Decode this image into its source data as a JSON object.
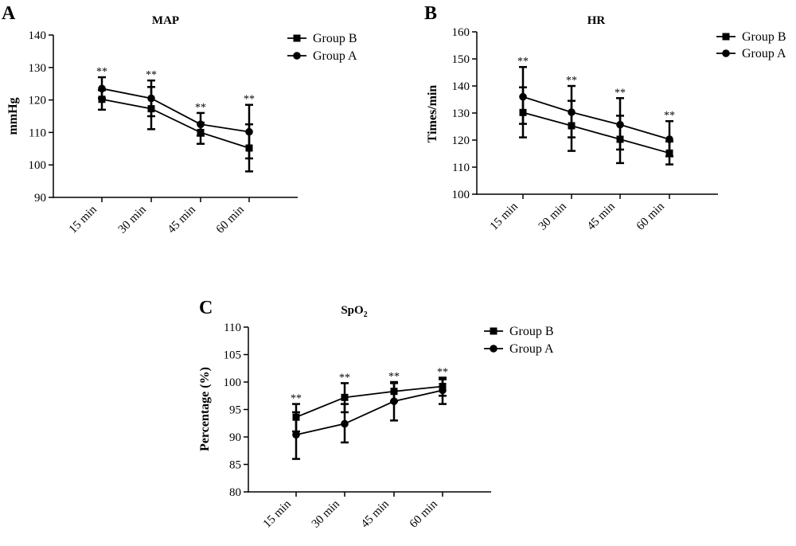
{
  "chart_data": [
    {
      "type": "line",
      "panel": "A",
      "title": "MAP",
      "xlabel": "",
      "ylabel": "mmHg",
      "categories": [
        "15 min",
        "30 min",
        "45 min",
        "60 min"
      ],
      "ylim": [
        90,
        140
      ],
      "yticks": [
        90,
        100,
        110,
        120,
        130,
        140
      ],
      "significance": [
        "**",
        "**",
        "**",
        "**"
      ],
      "legend_position": "top-right",
      "series": [
        {
          "name": "Group B",
          "marker": "square",
          "values": [
            120.2,
            117.3,
            110.0,
            105.2
          ],
          "err_low": [
            117.0,
            111.0,
            106.5,
            98.0
          ],
          "err_high": [
            123.0,
            124.0,
            113.0,
            112.5
          ]
        },
        {
          "name": "Group A",
          "marker": "circle",
          "values": [
            123.5,
            120.5,
            112.5,
            110.2
          ],
          "err_low": [
            120.5,
            115.0,
            109.0,
            102.0
          ],
          "err_high": [
            127.0,
            126.0,
            116.0,
            118.5
          ]
        }
      ]
    },
    {
      "type": "line",
      "panel": "B",
      "title": "HR",
      "xlabel": "",
      "ylabel": "Times/min",
      "categories": [
        "15 min",
        "30 min",
        "45 min",
        "60 min"
      ],
      "ylim": [
        100,
        160
      ],
      "yticks": [
        100,
        110,
        120,
        130,
        140,
        150,
        160
      ],
      "significance": [
        "**",
        "**",
        "**",
        "**"
      ],
      "legend_position": "top-right",
      "series": [
        {
          "name": "Group B",
          "marker": "square",
          "values": [
            130.2,
            125.3,
            120.3,
            115.2
          ],
          "err_low": [
            121.0,
            116.0,
            111.5,
            111.0
          ],
          "err_high": [
            139.5,
            134.5,
            129.0,
            119.5
          ]
        },
        {
          "name": "Group A",
          "marker": "circle",
          "values": [
            136.0,
            130.3,
            125.7,
            120.3
          ],
          "err_low": [
            126.0,
            121.0,
            116.5,
            114.0
          ],
          "err_high": [
            147.0,
            140.0,
            135.5,
            127.0
          ]
        }
      ]
    },
    {
      "type": "line",
      "panel": "C",
      "title": "SpO",
      "title_subscript": "2",
      "xlabel": "",
      "ylabel": "Percentage (%)",
      "categories": [
        "15 min",
        "30 min",
        "45 min",
        "60 min"
      ],
      "ylim": [
        80,
        110
      ],
      "yticks": [
        80,
        85,
        90,
        95,
        100,
        105,
        110
      ],
      "significance": [
        "**",
        "**",
        "**",
        "**"
      ],
      "legend_position": "top-right",
      "series": [
        {
          "name": "Group B",
          "marker": "square",
          "values": [
            93.6,
            97.2,
            98.3,
            99.2
          ],
          "err_low": [
            91.0,
            94.5,
            96.5,
            97.5
          ],
          "err_high": [
            96.0,
            99.8,
            99.8,
            100.5
          ]
        },
        {
          "name": "Group A",
          "marker": "circle",
          "values": [
            90.4,
            92.4,
            96.5,
            98.5
          ],
          "err_low": [
            86.0,
            89.0,
            93.0,
            96.0
          ],
          "err_high": [
            94.5,
            96.0,
            100.0,
            100.8
          ]
        }
      ]
    }
  ]
}
